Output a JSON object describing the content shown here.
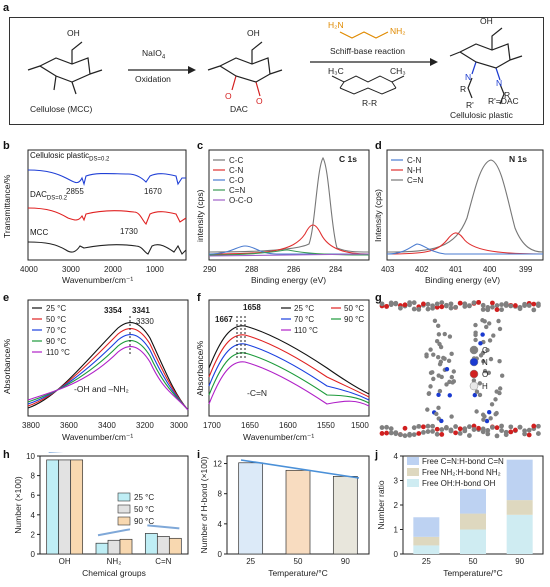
{
  "panel_labels": [
    "a",
    "b",
    "c",
    "d",
    "e",
    "f",
    "g",
    "h",
    "i",
    "j"
  ],
  "scheme": {
    "cellulose_label": "Cellulose (MCC)",
    "reagent_top": "NaIO",
    "reagent_top_sub": "4",
    "reagent_bottom": "Oxidation",
    "dac_label": "DAC",
    "reaction_label": "Schiff-base reaction",
    "rr_label": "R-R",
    "r_prime_label": "R'=DAC",
    "product_label": "Cellulosic plastic",
    "amine_left": "H₂N",
    "amine_right": "NH₂",
    "oh": "OH",
    "o": "O",
    "r": "R",
    "r_prime": "R'",
    "n": "N",
    "ch3_left": "H₃C",
    "ch3_right": "CH₃"
  },
  "chart_b": {
    "ylabel": "Transmittance/%",
    "xlabel": "Wavenumber/cm⁻¹",
    "xticks": [
      "4000",
      "3000",
      "2000",
      "1000"
    ],
    "labels": [
      {
        "text": "Cellulosic plastic",
        "sub": "DS=0.2",
        "color": "#1f3fd6"
      },
      {
        "text": "DAC",
        "sub": "DS=0.2",
        "color": "#222"
      },
      {
        "text": "MCC",
        "sub": "",
        "color": "#222"
      }
    ],
    "annotations": [
      "2855",
      "1670",
      "1730"
    ]
  },
  "chart_c": {
    "title": "C 1s",
    "ylabel": "intensity (cps)",
    "xlabel": "Binding energy (eV)",
    "xticks": [
      "290",
      "288",
      "286",
      "284"
    ],
    "legend": [
      {
        "name": "C-C",
        "color": "#777"
      },
      {
        "name": "C-N",
        "color": "#e03030"
      },
      {
        "name": "C-O",
        "color": "#4a7bd0"
      },
      {
        "name": "C=N",
        "color": "#3a9a55"
      },
      {
        "name": "O-C-O",
        "color": "#a060c8"
      }
    ]
  },
  "chart_d": {
    "title": "N 1s",
    "ylabel": "Intensity (cps)",
    "xlabel": "Binding energy (eV)",
    "xticks": [
      "403",
      "402",
      "401",
      "400",
      "399"
    ],
    "legend": [
      {
        "name": "C-N",
        "color": "#4a7bd0"
      },
      {
        "name": "N-H",
        "color": "#e03030"
      },
      {
        "name": "C=N",
        "color": "#777"
      }
    ]
  },
  "chart_e": {
    "ylabel": "Absorbance/%",
    "xlabel": "Wavenumber/cm⁻¹",
    "xticks": [
      "3800",
      "3600",
      "3400",
      "3200",
      "3000"
    ],
    "legend": [
      {
        "name": "25 °C",
        "color": "#111"
      },
      {
        "name": "50 °C",
        "color": "#e02020"
      },
      {
        "name": "70 °C",
        "color": "#1a40e0"
      },
      {
        "name": "90 °C",
        "color": "#1c9a3a"
      },
      {
        "name": "110 °C",
        "color": "#b020c8"
      }
    ],
    "peaks": [
      {
        "text": "3354",
        "color": "#e02020"
      },
      {
        "text": "3341",
        "color": "#1a40e0"
      },
      {
        "text": "3330",
        "color": "#111"
      }
    ],
    "note": "-OH and –NH₂"
  },
  "chart_f": {
    "ylabel": "Absorbance/%",
    "xlabel": "Wavenumber/cm⁻¹",
    "xticks": [
      "1700",
      "1650",
      "1600",
      "1550",
      "1500"
    ],
    "legend": [
      {
        "name": "25 °C",
        "color": "#111"
      },
      {
        "name": "50 °C",
        "color": "#e02020"
      },
      {
        "name": "70 °C",
        "color": "#1a40e0"
      },
      {
        "name": "90 °C",
        "color": "#1c9a3a"
      },
      {
        "name": "110 °C",
        "color": "#b020c8"
      }
    ],
    "peaks": [
      {
        "text": "1658",
        "color": "#111"
      },
      {
        "text": "1667",
        "color": "#e02020"
      }
    ],
    "note": "-C=N"
  },
  "panel_g": {
    "legend": [
      {
        "name": "C",
        "color": "#808080"
      },
      {
        "name": "N",
        "color": "#1a3ad0"
      },
      {
        "name": "O",
        "color": "#d02020"
      },
      {
        "name": "H",
        "color": "#e8e8e8"
      }
    ]
  },
  "chart_data": [
    {
      "type": "bar",
      "panel": "h",
      "categories": [
        "OH",
        "NH₂",
        "C=N"
      ],
      "series": [
        {
          "name": "25 °C",
          "color": "#bfeef5",
          "values": [
            9.6,
            1.1,
            2.1
          ]
        },
        {
          "name": "50 °C",
          "color": "#e2e2e2",
          "values": [
            9.6,
            1.4,
            1.8
          ]
        },
        {
          "name": "90 °C",
          "color": "#f8d8b0",
          "values": [
            9.6,
            1.5,
            1.6
          ]
        }
      ],
      "xlabel": "Chemical groups",
      "ylabel": "Number (×100)",
      "ylim": [
        0,
        10
      ],
      "yticks": [
        "0",
        "2",
        "4",
        "6",
        "8",
        "10"
      ]
    },
    {
      "type": "bar",
      "panel": "i",
      "categories": [
        "25",
        "50",
        "90"
      ],
      "colors": [
        "#dceaf8",
        "#f8dcc0",
        "#e8e6dc"
      ],
      "values": [
        12.1,
        11.1,
        10.3
      ],
      "xlabel": "Temperature/°C",
      "ylabel": "Number of H-bond (×100)",
      "ylim": [
        0,
        13
      ],
      "yticks": [
        "0",
        "4",
        "8",
        "12"
      ]
    },
    {
      "type": "bar",
      "panel": "j",
      "categories": [
        "25",
        "50",
        "90"
      ],
      "series": [
        {
          "name": "Free OH:H-bond OH",
          "color": "#cfecf2",
          "values": [
            0.35,
            1.0,
            1.6
          ]
        },
        {
          "name": "Free NH₂:H-bond NH₂",
          "color": "#ded8bf",
          "values": [
            0.35,
            0.65,
            0.6
          ]
        },
        {
          "name": "Free C=N:H-bond C=N",
          "color": "#bdd2f2",
          "values": [
            0.8,
            1.0,
            1.65
          ]
        }
      ],
      "xlabel": "Temperature/°C",
      "ylabel": "Number ratio",
      "ylim": [
        0,
        4
      ],
      "yticks": [
        "0",
        "1",
        "2",
        "3",
        "4"
      ]
    }
  ]
}
